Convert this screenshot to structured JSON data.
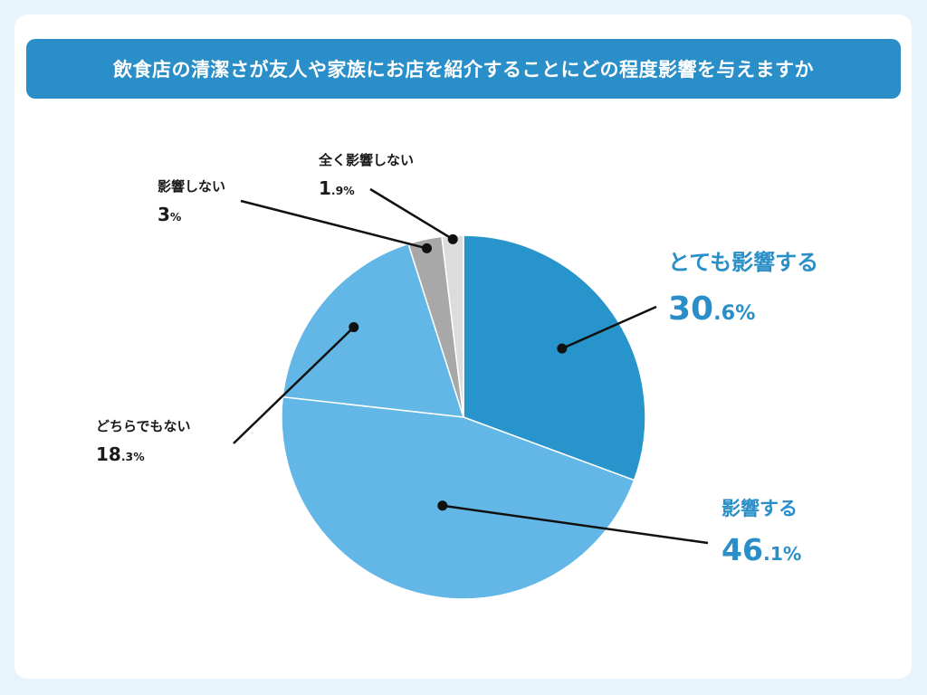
{
  "chart_data": {
    "type": "pie",
    "title": "飲食店の清潔さが友人や家族にお店を紹介することにどの程度影響を与えますか",
    "slices": [
      {
        "name": "とても影響する",
        "value": 30.6,
        "int": "30",
        "dec": ".6",
        "unit": "%",
        "color": "#2795cc"
      },
      {
        "name": "影響する",
        "value": 46.1,
        "int": "46",
        "dec": ".1",
        "unit": "%",
        "color": "#62b7e6"
      },
      {
        "name": "どちらでもない",
        "value": 18.3,
        "int": "18",
        "dec": ".3",
        "unit": "%",
        "color": "#62b7e6"
      },
      {
        "name": "影響しない",
        "value": 3,
        "int": "3",
        "dec": "",
        "unit": "%",
        "color": "#a8a8a8"
      },
      {
        "name": "全く影響しない",
        "value": 1.9,
        "int": "1",
        "dec": ".9",
        "unit": "%",
        "color": "#dcdcdc"
      }
    ]
  }
}
